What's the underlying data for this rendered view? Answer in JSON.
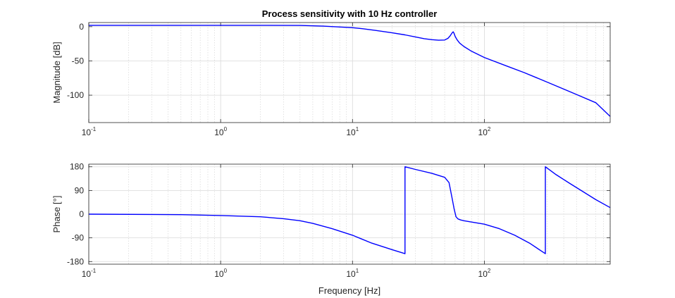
{
  "figure": {
    "title": "Process sensitivity with 10 Hz controller"
  },
  "chart_data": [
    {
      "type": "line",
      "title": "Process sensitivity with 10 Hz controller",
      "xlabel": "",
      "ylabel": "Magnitude [dB]",
      "xscale": "log",
      "xlim": [
        0.1,
        900
      ],
      "ylim": [
        -140,
        6
      ],
      "yticks": [
        0,
        -50,
        -100
      ],
      "ytick_labels": [
        "0",
        "-50",
        "-100"
      ],
      "xtick_labels": [
        {
          "base": "10",
          "exp": "-1"
        },
        {
          "base": "10",
          "exp": "0"
        },
        {
          "base": "10",
          "exp": "1"
        },
        {
          "base": "10",
          "exp": "2"
        }
      ],
      "grid": true,
      "series": [
        {
          "color": "#0000ff",
          "x": [
            0.1,
            0.5,
            1,
            2,
            4,
            6,
            8,
            10,
            12,
            15,
            20,
            25,
            30,
            35,
            40,
            45,
            50,
            53,
            55,
            57,
            58,
            59,
            60,
            62,
            65,
            70,
            80,
            100,
            150,
            200,
            300,
            500,
            700,
            900
          ],
          "y": [
            2,
            2,
            2,
            2,
            1.8,
            0.8,
            -0.5,
            -1.5,
            -3,
            -5.5,
            -9,
            -12,
            -15,
            -17.5,
            -19,
            -19.8,
            -19.5,
            -17,
            -13.5,
            -9,
            -7.5,
            -10,
            -14,
            -19,
            -24,
            -29,
            -36,
            -45,
            -58,
            -67,
            -81,
            -99,
            -111,
            -131
          ]
        }
      ]
    },
    {
      "type": "line",
      "title": "",
      "xlabel": "Frequency [Hz]",
      "ylabel": "Phase [°]",
      "xscale": "log",
      "xlim": [
        0.1,
        900
      ],
      "ylim": [
        -190,
        190
      ],
      "yticks": [
        180,
        90,
        0,
        -90,
        -180
      ],
      "ytick_labels": [
        "180",
        "90",
        "0",
        "-90",
        "-180"
      ],
      "xtick_labels": [
        {
          "base": "10",
          "exp": "-1"
        },
        {
          "base": "10",
          "exp": "0"
        },
        {
          "base": "10",
          "exp": "1"
        },
        {
          "base": "10",
          "exp": "2"
        }
      ],
      "grid": true,
      "series": [
        {
          "color": "#0000ff",
          "x": [
            0.1,
            0.3,
            0.5,
            1,
            2,
            3,
            4,
            5,
            7,
            10,
            14,
            20,
            25,
            25,
            30,
            40,
            50,
            54,
            57,
            59,
            61,
            63,
            66,
            70,
            80,
            100,
            130,
            170,
            220,
            290,
            290,
            350,
            450,
            550,
            700,
            900
          ],
          "y": [
            0,
            -1,
            -2,
            -5,
            -10,
            -17,
            -25,
            -35,
            -55,
            -80,
            -110,
            -135,
            -150,
            180,
            170,
            155,
            140,
            120,
            60,
            20,
            -10,
            -18,
            -22,
            -25,
            -30,
            -38,
            -55,
            -80,
            -110,
            -150,
            180,
            150,
            115,
            88,
            55,
            25
          ]
        }
      ]
    }
  ]
}
